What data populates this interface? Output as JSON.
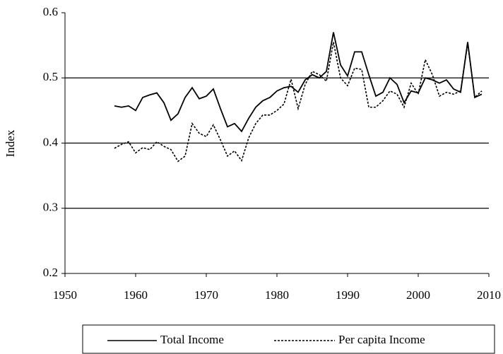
{
  "chart_data": {
    "type": "line",
    "y_label": "Index",
    "x": [
      1957,
      1958,
      1959,
      1960,
      1961,
      1962,
      1963,
      1964,
      1965,
      1966,
      1967,
      1968,
      1969,
      1970,
      1971,
      1972,
      1973,
      1974,
      1975,
      1976,
      1977,
      1978,
      1979,
      1980,
      1981,
      1982,
      1983,
      1984,
      1985,
      1986,
      1987,
      1988,
      1989,
      1990,
      1991,
      1992,
      1993,
      1994,
      1995,
      1996,
      1997,
      1998,
      1999,
      2000,
      2001,
      2002,
      2003,
      2004,
      2005,
      2006,
      2007,
      2008,
      2009
    ],
    "series": [
      {
        "name": "Total Income",
        "color": "#000000",
        "dash": false,
        "values": [
          0.457,
          0.455,
          0.457,
          0.45,
          0.47,
          0.474,
          0.477,
          0.462,
          0.435,
          0.445,
          0.47,
          0.485,
          0.468,
          0.472,
          0.483,
          0.453,
          0.425,
          0.43,
          0.418,
          0.438,
          0.455,
          0.465,
          0.47,
          0.48,
          0.485,
          0.487,
          0.478,
          0.497,
          0.505,
          0.5,
          0.51,
          0.57,
          0.52,
          0.503,
          0.54,
          0.54,
          0.505,
          0.472,
          0.478,
          0.5,
          0.49,
          0.462,
          0.48,
          0.477,
          0.5,
          0.497,
          0.492,
          0.497,
          0.483,
          0.478,
          0.555,
          0.47,
          0.475
        ]
      },
      {
        "name": "Per capita Income",
        "color": "#000000",
        "dash": true,
        "values": [
          0.392,
          0.398,
          0.402,
          0.385,
          0.393,
          0.39,
          0.402,
          0.395,
          0.39,
          0.372,
          0.38,
          0.43,
          0.415,
          0.41,
          0.428,
          0.405,
          0.38,
          0.388,
          0.373,
          0.408,
          0.43,
          0.443,
          0.443,
          0.45,
          0.46,
          0.498,
          0.453,
          0.49,
          0.51,
          0.505,
          0.495,
          0.555,
          0.5,
          0.488,
          0.515,
          0.513,
          0.455,
          0.455,
          0.465,
          0.48,
          0.475,
          0.455,
          0.492,
          0.475,
          0.528,
          0.505,
          0.472,
          0.478,
          0.475,
          0.48,
          0.553,
          0.47,
          0.48
        ]
      }
    ],
    "xlim": [
      1950,
      2010
    ],
    "xticks": [
      1950,
      1960,
      1970,
      1980,
      1990,
      2000,
      2010
    ],
    "ylim": [
      0.2,
      0.6
    ],
    "yticks": [
      {
        "value": 0.2,
        "label": "0.2"
      },
      {
        "value": 0.3,
        "label": "0.3"
      },
      {
        "value": 0.4,
        "label": "0.4"
      },
      {
        "value": 0.5,
        "label": "0.5"
      },
      {
        "value": 0.6,
        "label": "0.6"
      }
    ],
    "grid": true,
    "legend": "bottom"
  }
}
